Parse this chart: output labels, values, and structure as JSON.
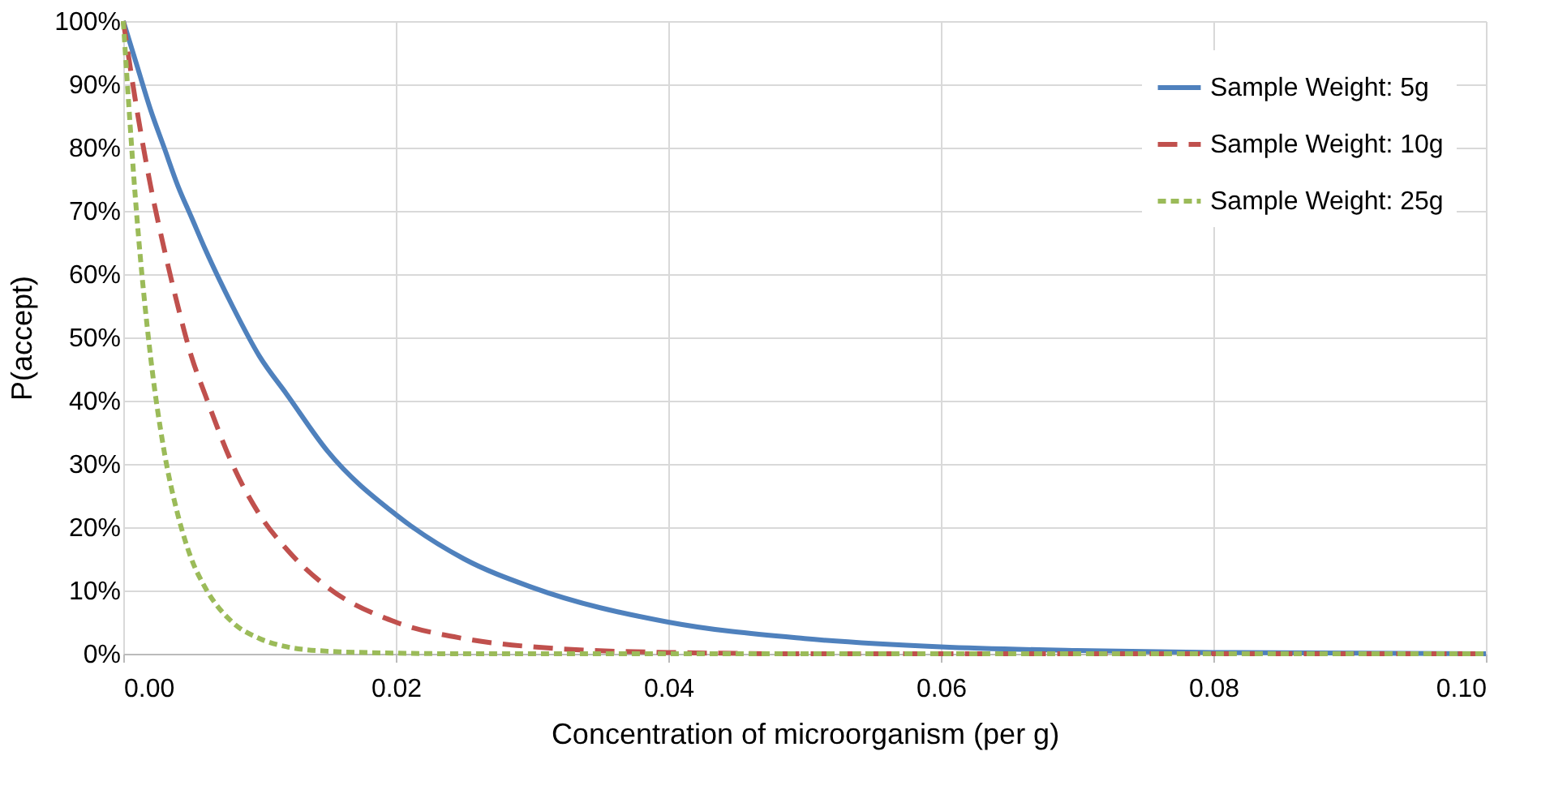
{
  "chart_data": {
    "type": "line",
    "xlabel": "Concentration of microorganism (per g)",
    "ylabel": "P(accept)",
    "x": [
      0,
      0.001,
      0.002,
      0.003,
      0.004,
      0.005,
      0.006,
      0.008,
      0.01,
      0.012,
      0.015,
      0.02,
      0.025,
      0.03,
      0.04,
      0.05,
      0.06,
      0.07,
      0.08,
      0.1
    ],
    "series": [
      {
        "name": "Sample Weight: 5g",
        "color": "#4f81bd",
        "line_style": "solid",
        "values": [
          100,
          93,
          86,
          80,
          74,
          69,
          64,
          55,
          47,
          41,
          32,
          22,
          15,
          10.5,
          5,
          2.4,
          1.1,
          0.5,
          0.2,
          0
        ]
      },
      {
        "name": "Sample Weight: 10g",
        "color": "#c0504d",
        "line_style": "dashed",
        "values": [
          100,
          86,
          74,
          64,
          55,
          47,
          41,
          30,
          22,
          16.5,
          10.5,
          5,
          2.4,
          1.1,
          0.2,
          0,
          0,
          0,
          0,
          0
        ]
      },
      {
        "name": "Sample Weight: 25g",
        "color": "#9bbb59",
        "line_style": "dotted",
        "values": [
          100,
          69,
          47,
          32,
          22,
          15,
          10.5,
          5,
          2.4,
          1.1,
          0.4,
          0.1,
          0,
          0,
          0,
          0,
          0,
          0,
          0,
          0
        ]
      }
    ],
    "xlim": [
      0,
      0.1
    ],
    "xticks": [
      {
        "value": 0,
        "label": "0.00"
      },
      {
        "value": 0.02,
        "label": "0.02"
      },
      {
        "value": 0.04,
        "label": "0.04"
      },
      {
        "value": 0.06,
        "label": "0.06"
      },
      {
        "value": 0.08,
        "label": "0.08"
      },
      {
        "value": 0.1,
        "label": "0.10"
      }
    ],
    "ylim": [
      0,
      100
    ],
    "yticks": [
      {
        "value": 0,
        "label": "0%"
      },
      {
        "value": 10,
        "label": "10%"
      },
      {
        "value": 20,
        "label": "20%"
      },
      {
        "value": 30,
        "label": "30%"
      },
      {
        "value": 40,
        "label": "40%"
      },
      {
        "value": 50,
        "label": "50%"
      },
      {
        "value": 60,
        "label": "60%"
      },
      {
        "value": 70,
        "label": "70%"
      },
      {
        "value": 80,
        "label": "80%"
      },
      {
        "value": 90,
        "label": "90%"
      },
      {
        "value": 100,
        "label": "100%"
      }
    ],
    "grid": true,
    "legend": "top right",
    "marker": "none"
  }
}
